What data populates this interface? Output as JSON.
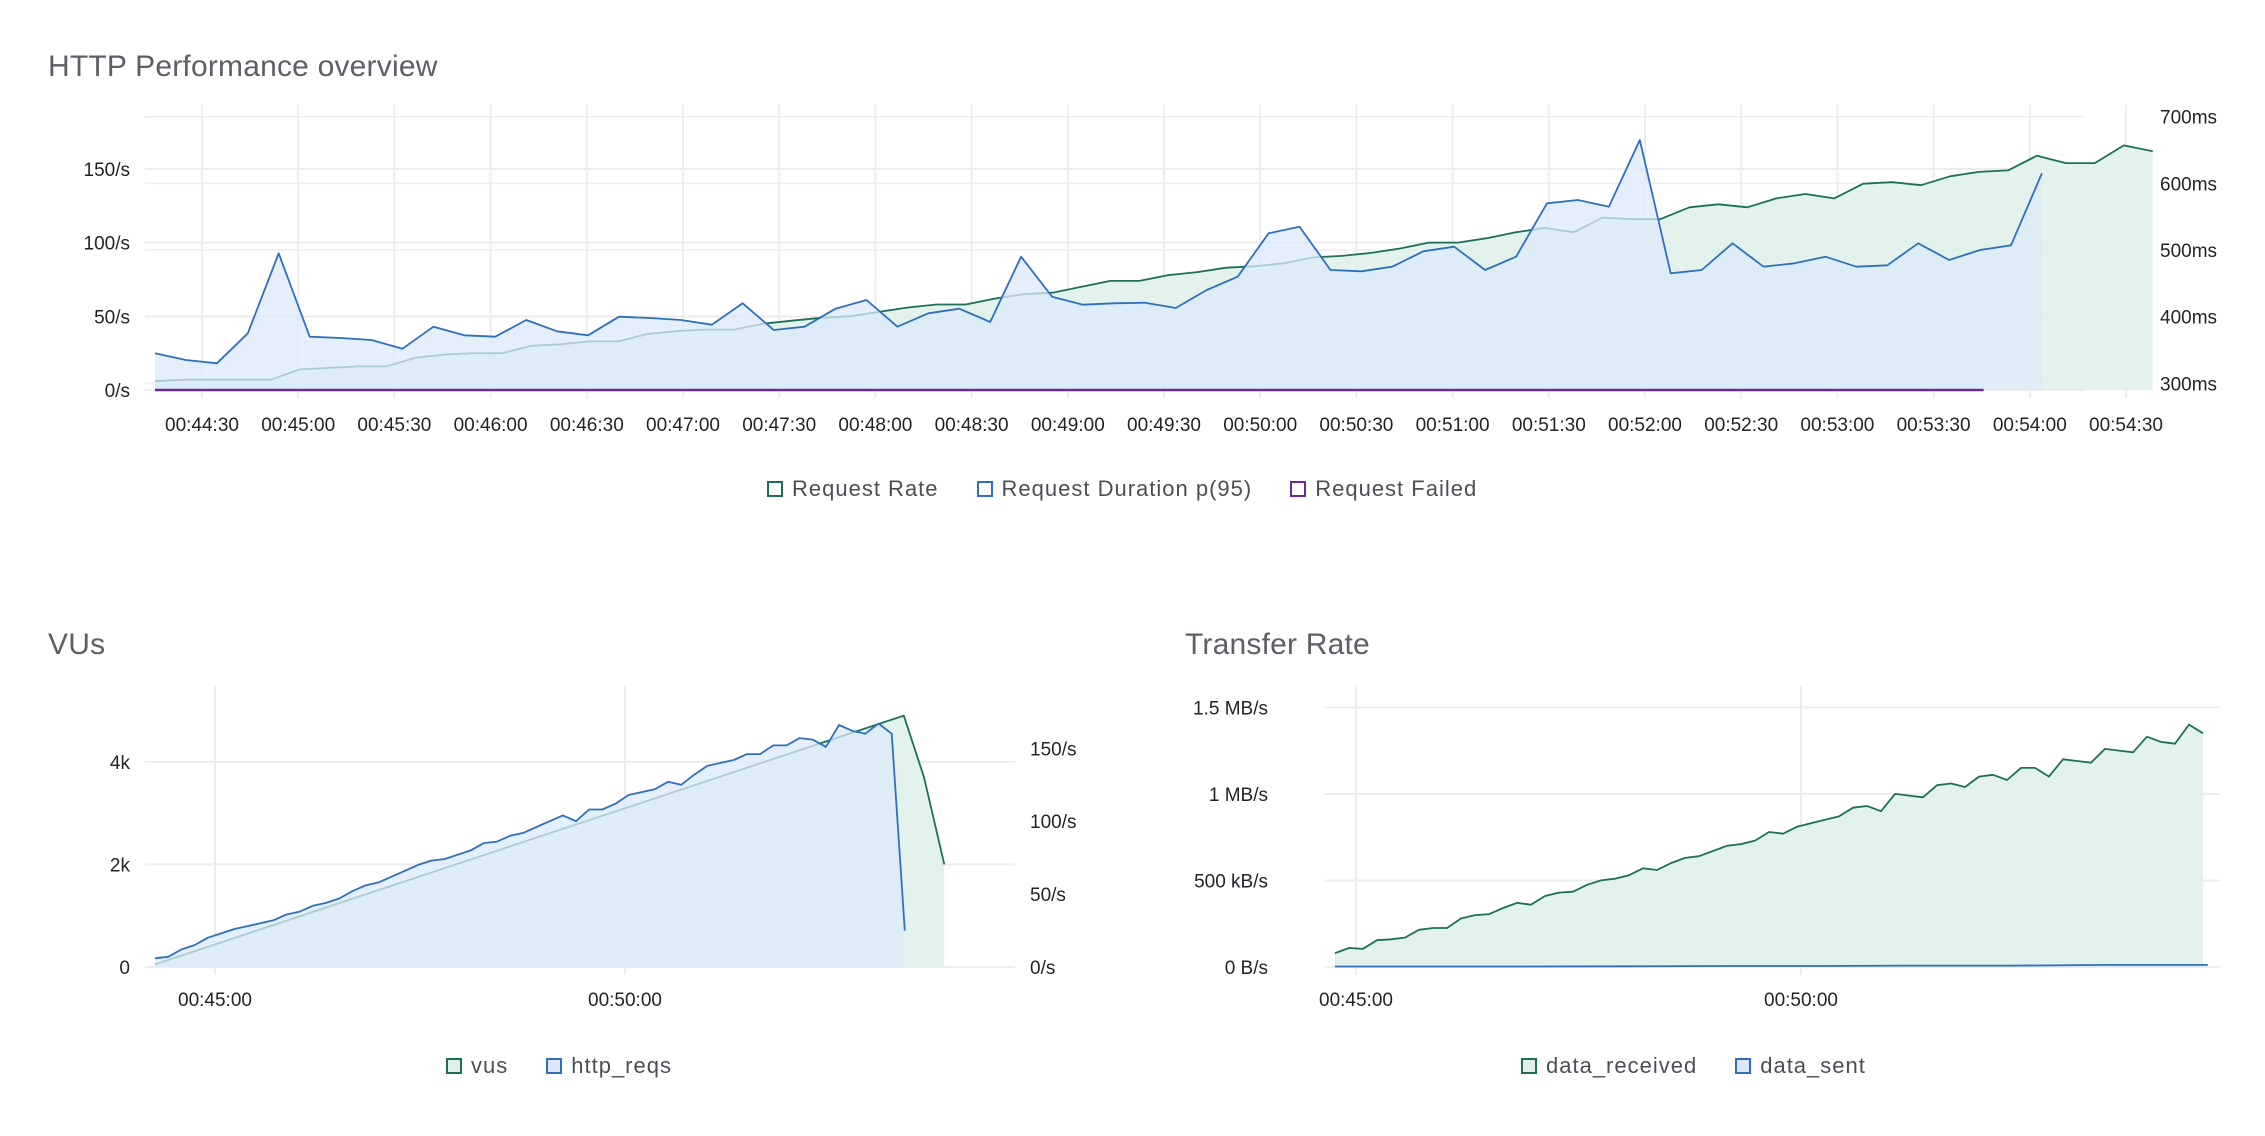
{
  "panels": {
    "http": {
      "title": "HTTP Performance overview"
    },
    "vus": {
      "title": "VUs"
    },
    "transfer": {
      "title": "Transfer Rate"
    }
  },
  "colors": {
    "green": "#1d6f5a",
    "green_fill": "#dff0ea",
    "blue": "#2f6fbf",
    "blue_fill": "#dce9fa",
    "purple": "#6a2b9a",
    "grid": "#ededed"
  },
  "chart_data": [
    {
      "id": "http",
      "type": "area",
      "title": "HTTP Performance overview",
      "x_ticks": [
        "00:44:30",
        "00:45:00",
        "00:45:30",
        "00:46:00",
        "00:46:30",
        "00:47:00",
        "00:47:30",
        "00:48:00",
        "00:48:30",
        "00:49:00",
        "00:49:30",
        "00:50:00",
        "00:50:30",
        "00:51:00",
        "00:51:30",
        "00:52:00",
        "00:52:30",
        "00:53:00",
        "00:53:30",
        "00:54:00",
        "00:54:30"
      ],
      "x_range_seconds": [
        0,
        630
      ],
      "y_left": {
        "ticks": [
          "0/s",
          "50/s",
          "100/s",
          "150/s"
        ],
        "range": [
          0,
          190
        ]
      },
      "y_right": {
        "ticks": [
          "300ms",
          "400ms",
          "500ms",
          "600ms",
          "700ms"
        ],
        "range": [
          290,
          710
        ]
      },
      "grid": true,
      "legend_position": "bottom",
      "series": [
        {
          "name": "Request Rate",
          "axis": "left",
          "color_key": "green",
          "values": [
            6,
            7,
            7,
            7,
            7,
            14,
            15,
            16,
            16,
            22,
            24,
            25,
            25,
            30,
            31,
            33,
            33,
            38,
            40,
            41,
            41,
            45,
            47,
            49,
            50,
            53,
            56,
            58,
            58,
            62,
            65,
            66,
            70,
            74,
            74,
            78,
            80,
            83,
            84,
            86,
            90,
            91,
            93,
            96,
            100,
            100,
            103,
            107,
            110,
            107,
            117,
            116,
            116,
            124,
            126,
            124,
            130,
            133,
            130,
            140,
            141,
            139,
            145,
            148,
            149,
            159,
            154,
            154,
            166,
            162
          ],
          "x_start": 0,
          "x_step": 9.5
        },
        {
          "name": "Request Duration p(95)",
          "axis": "right",
          "color_key": "blue",
          "values": [
            345,
            335,
            330,
            375,
            495,
            370,
            368,
            365,
            352,
            385,
            372,
            370,
            395,
            378,
            372,
            400,
            398,
            395,
            388,
            420,
            380,
            385,
            412,
            425,
            385,
            405,
            412,
            392,
            490,
            430,
            418,
            420,
            421,
            413,
            440,
            460,
            525,
            535,
            470,
            468,
            475,
            498,
            505,
            470,
            490,
            570,
            575,
            565,
            665,
            465,
            470,
            510,
            475,
            480,
            490,
            475,
            477,
            510,
            485,
            500,
            507,
            615
          ],
          "x_start": 0,
          "x_step": 10.15
        },
        {
          "name": "Request Failed",
          "axis": "left",
          "color_key": "purple",
          "values": [
            0,
            0
          ],
          "x_start": 0,
          "x_step": 600
        }
      ]
    },
    {
      "id": "vus",
      "type": "area",
      "title": "VUs",
      "x_ticks": [
        "00:45:00",
        "00:50:00"
      ],
      "x_range_seconds": [
        0,
        630
      ],
      "y_left": {
        "ticks": [
          "0",
          "2k",
          "4k"
        ],
        "range": [
          0,
          5400
        ]
      },
      "y_right": {
        "ticks": [
          "0/s",
          "50/s",
          "100/s",
          "150/s"
        ],
        "range": [
          0,
          190
        ]
      },
      "grid": true,
      "legend_position": "bottom",
      "series": [
        {
          "name": "vus",
          "axis": "left",
          "color_key": "green",
          "values": [
            50,
            4900,
            3700,
            2000
          ],
          "x_points": [
            0,
            555,
            570,
            585
          ]
        },
        {
          "name": "http_reqs",
          "axis": "right",
          "color_key": "blue",
          "values": [
            6,
            7,
            12,
            15,
            20,
            23,
            26,
            28,
            30,
            32,
            36,
            38,
            42,
            44,
            47,
            52,
            56,
            58,
            62,
            66,
            70,
            73,
            74,
            77,
            80,
            85,
            86,
            90,
            92,
            96,
            100,
            104,
            100,
            108,
            108,
            112,
            118,
            120,
            122,
            127,
            125,
            132,
            138,
            140,
            142,
            146,
            146,
            152,
            152,
            157,
            156,
            151,
            166,
            162,
            160,
            167,
            160,
            25
          ],
          "x_start": 0,
          "x_step": 9.75
        }
      ]
    },
    {
      "id": "transfer",
      "type": "area",
      "title": "Transfer Rate",
      "x_ticks": [
        "00:45:00",
        "00:50:00"
      ],
      "x_range_seconds": [
        0,
        600
      ],
      "y_left": {
        "ticks": [
          "0 B/s",
          "500 kB/s",
          "1 MB/s",
          "1.5 MB/s"
        ],
        "range": [
          0,
          1600
        ]
      },
      "grid": true,
      "legend_position": "bottom",
      "series": [
        {
          "name": "data_received",
          "axis": "left",
          "color_key": "green",
          "values": [
            80,
            110,
            105,
            155,
            160,
            170,
            215,
            225,
            225,
            280,
            300,
            305,
            340,
            370,
            360,
            410,
            430,
            435,
            475,
            500,
            510,
            530,
            570,
            560,
            600,
            630,
            640,
            670,
            700,
            710,
            730,
            780,
            770,
            810,
            830,
            850,
            870,
            920,
            930,
            900,
            1000,
            990,
            980,
            1050,
            1060,
            1040,
            1100,
            1110,
            1080,
            1150,
            1150,
            1100,
            1200,
            1190,
            1180,
            1260,
            1250,
            1240,
            1330,
            1300,
            1290,
            1400,
            1350
          ],
          "x_start": 0,
          "x_step": 9.6
        },
        {
          "name": "data_sent",
          "axis": "left",
          "color_key": "blue",
          "values": [
            3,
            3,
            3,
            4,
            6,
            6,
            8,
            8,
            12,
            12
          ],
          "x_start": 0,
          "x_step": 66.5
        }
      ]
    }
  ]
}
